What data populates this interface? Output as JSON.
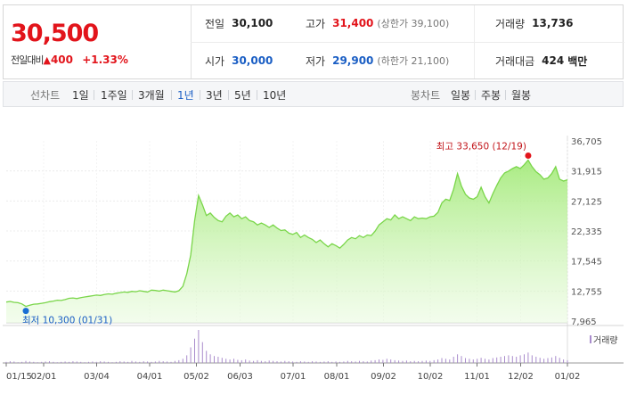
{
  "quote": {
    "price": "30,500",
    "change_label": "전일대비",
    "change_arrow": "▲",
    "change": "400",
    "change_pct": "+1.33%",
    "prev_close_label": "전일",
    "prev_close": "30,100",
    "high_label": "고가",
    "high": "31,400",
    "high_limit": "(상한가 39,100)",
    "volume_label": "거래량",
    "volume": "13,736",
    "open_label": "시가",
    "open": "30,000",
    "low_label": "저가",
    "low": "29,900",
    "low_limit": "(하한가 21,100)",
    "amount_label": "거래대금",
    "amount": "424",
    "amount_unit": "백만"
  },
  "tabs": {
    "line_chart_label": "선차트",
    "periods": [
      "1일",
      "1주일",
      "3개월",
      "1년",
      "3년",
      "5년",
      "10년"
    ],
    "selected_period": "1년",
    "candle_chart_label": "봉차트",
    "candle_periods": [
      "일봉",
      "주봉",
      "월봉"
    ]
  },
  "chart_data": {
    "type": "area",
    "title": "",
    "xlabel": "",
    "ylabel": "",
    "ylim": [
      7965,
      36705
    ],
    "yticks": [
      "36,705",
      "31,915",
      "27,125",
      "22,335",
      "17,545",
      "12,755",
      "7,965"
    ],
    "xticks": [
      "01/15",
      "02/01",
      "03/04",
      "04/01",
      "05/02",
      "06/03",
      "07/01",
      "08/01",
      "09/02",
      "10/02",
      "11/01",
      "12/02",
      "01/02"
    ],
    "grid": true,
    "color": "#7ad64a",
    "max_annotation": "최고 33,650 (12/19)",
    "min_annotation": "최저 10,300 (01/31)",
    "volume_legend": "거래량",
    "price": [
      11000,
      11100,
      10950,
      10900,
      10700,
      10300,
      10500,
      10650,
      10700,
      10800,
      10900,
      11050,
      11150,
      11300,
      11250,
      11400,
      11600,
      11650,
      11550,
      11700,
      11800,
      11900,
      12000,
      12100,
      12050,
      12200,
      12300,
      12250,
      12400,
      12500,
      12600,
      12550,
      12700,
      12650,
      12800,
      12700,
      12600,
      12900,
      12850,
      12750,
      12900,
      12800,
      12700,
      12600,
      12800,
      13500,
      15500,
      18500,
      24000,
      28000,
      26500,
      24800,
      25200,
      24500,
      24000,
      23800,
      24700,
      25200,
      24600,
      24900,
      24300,
      24600,
      24000,
      23800,
      23300,
      23600,
      23300,
      22900,
      23300,
      22800,
      22400,
      22500,
      22000,
      21800,
      22100,
      21300,
      21700,
      21300,
      21000,
      20500,
      20900,
      20300,
      19800,
      20300,
      20000,
      19600,
      20200,
      20900,
      21300,
      21100,
      21600,
      21300,
      21700,
      21600,
      22300,
      23300,
      23800,
      24300,
      24100,
      24900,
      24300,
      24600,
      24300,
      24000,
      24600,
      24300,
      24400,
      24300,
      24600,
      24700,
      25300,
      26800,
      27400,
      27200,
      29000,
      31500,
      29500,
      28200,
      27600,
      27400,
      27800,
      29300,
      27800,
      26800,
      28300,
      29600,
      30800,
      31600,
      31900,
      32300,
      32600,
      32300,
      32900,
      33650,
      32600,
      31800,
      31300,
      30600,
      30800,
      31500,
      32600,
      30600,
      30300,
      30500
    ],
    "volume": [
      3,
      5,
      4,
      2,
      3,
      6,
      4,
      3,
      2,
      3,
      4,
      5,
      3,
      2,
      3,
      4,
      3,
      5,
      4,
      3,
      2,
      3,
      4,
      3,
      5,
      4,
      3,
      2,
      3,
      5,
      4,
      3,
      6,
      4,
      3,
      5,
      4,
      3,
      4,
      6,
      5,
      4,
      3,
      6,
      8,
      12,
      22,
      45,
      70,
      95,
      60,
      35,
      25,
      20,
      18,
      15,
      12,
      10,
      12,
      9,
      8,
      10,
      7,
      6,
      8,
      6,
      5,
      7,
      6,
      5,
      4,
      6,
      5,
      4,
      3,
      5,
      4,
      3,
      5,
      4,
      3,
      4,
      5,
      3,
      4,
      3,
      4,
      6,
      5,
      4,
      6,
      5,
      4,
      7,
      8,
      10,
      9,
      12,
      10,
      8,
      7,
      6,
      7,
      5,
      6,
      5,
      6,
      7,
      6,
      8,
      10,
      14,
      12,
      10,
      18,
      25,
      20,
      14,
      12,
      10,
      12,
      15,
      12,
      10,
      14,
      16,
      18,
      20,
      22,
      20,
      18,
      22,
      25,
      30,
      22,
      18,
      15,
      12,
      14,
      16,
      20,
      15,
      10,
      8
    ]
  }
}
